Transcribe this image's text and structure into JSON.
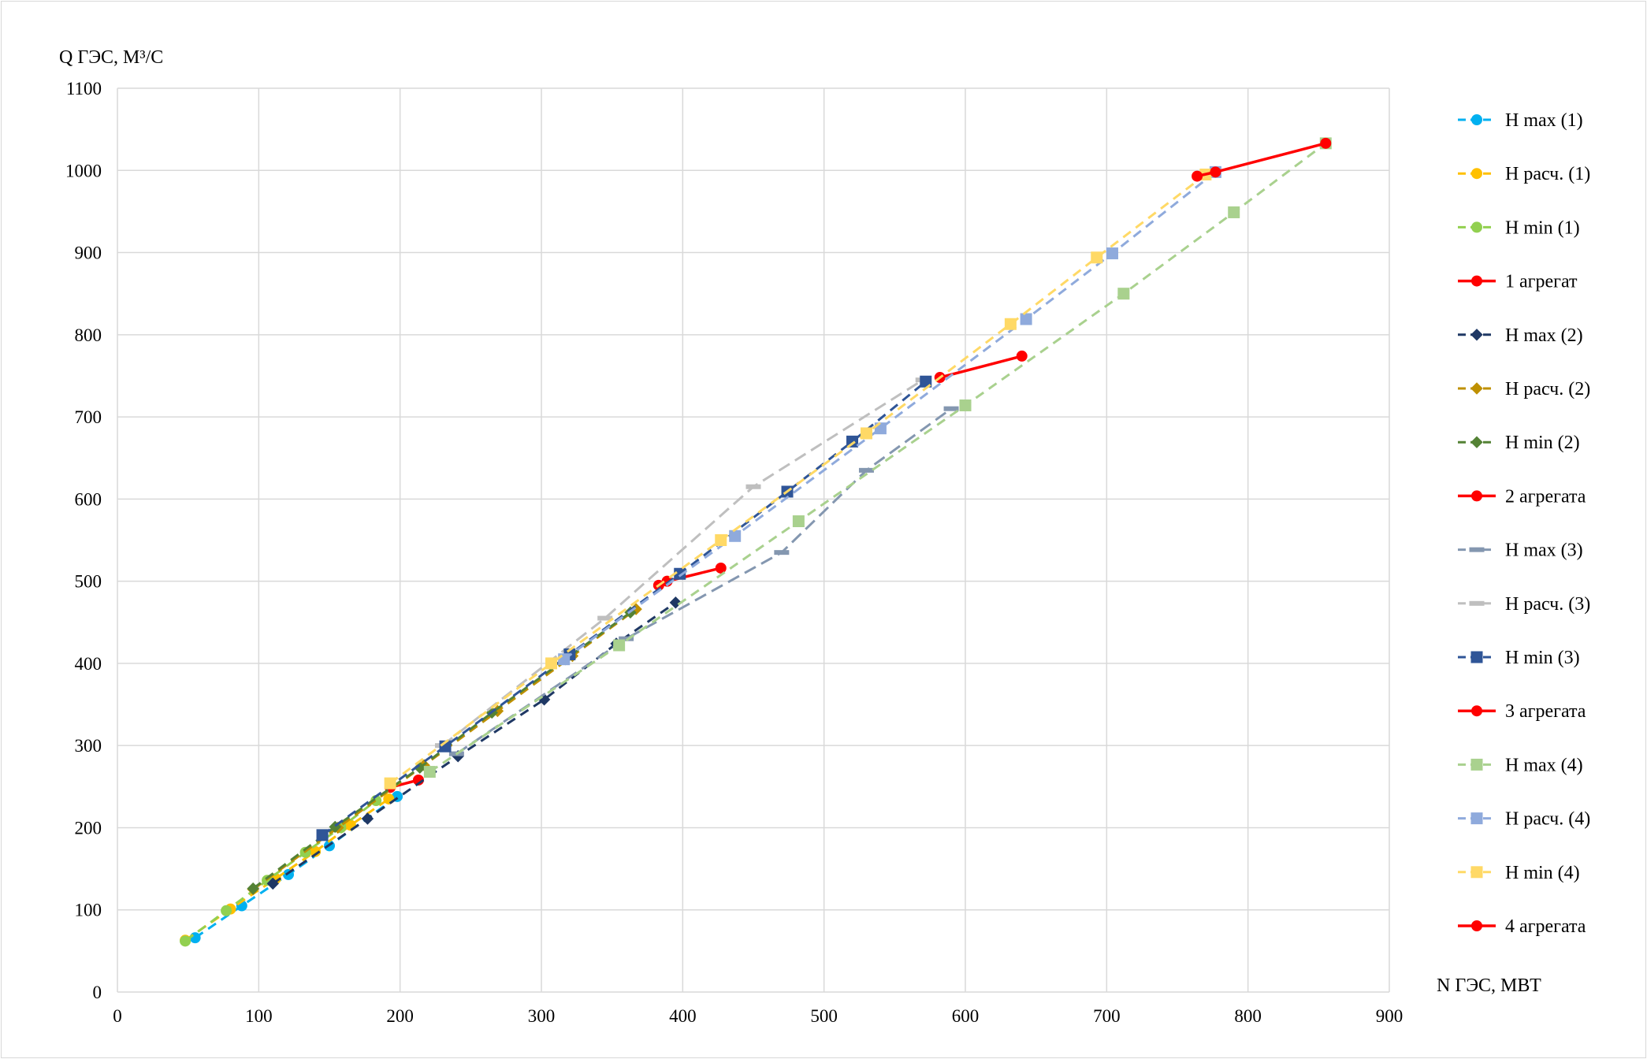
{
  "chart_data": {
    "type": "line",
    "xlabel": "N ГЭС, МВТ",
    "ylabel": "Q ГЭС, М³/С",
    "xlim": [
      0,
      900
    ],
    "ylim": [
      0,
      1100
    ],
    "x_ticks": [
      "0",
      "100",
      "200",
      "300",
      "400",
      "500",
      "600",
      "700",
      "800",
      "900"
    ],
    "y_ticks": [
      "0",
      "100",
      "200",
      "300",
      "400",
      "500",
      "600",
      "700",
      "800",
      "900",
      "1000",
      "1100"
    ],
    "grid": true,
    "legend_position": "right",
    "series": [
      {
        "name": "H max (1)",
        "color": "#00b0f0",
        "dash": "dash",
        "marker": "circle",
        "x": [
          55,
          88,
          121,
          150,
          198
        ],
        "y": [
          66,
          105,
          143,
          178,
          238
        ]
      },
      {
        "name": "H расч. (1)",
        "color": "#ffc000",
        "dash": "dash",
        "marker": "circle",
        "x": [
          48,
          80,
          112,
          140,
          165,
          192
        ],
        "y": [
          63,
          101,
          138,
          171,
          203,
          235
        ]
      },
      {
        "name": "H min (1)",
        "color": "#92d050",
        "dash": "dash",
        "marker": "circle",
        "x": [
          48,
          77,
          106,
          133,
          158,
          183
        ],
        "y": [
          62,
          99,
          136,
          170,
          200,
          233
        ]
      },
      {
        "name": "1 агрегат",
        "color": "#ff0000",
        "dash": "solid",
        "marker": "circle",
        "x": [
          193,
          213
        ],
        "y": [
          249,
          258
        ]
      },
      {
        "name": "H max (2)",
        "color": "#1f3864",
        "dash": "dash",
        "marker": "diamond",
        "x": [
          110,
          177,
          241,
          302,
          353,
          395
        ],
        "y": [
          132,
          211,
          287,
          356,
          424,
          474
        ]
      },
      {
        "name": "H расч. (2)",
        "color": "#bf9000",
        "dash": "dash",
        "marker": "diamond",
        "x": [
          96,
          156,
          217,
          269,
          322,
          367
        ],
        "y": [
          125,
          200,
          276,
          342,
          409,
          466
        ]
      },
      {
        "name": "H min (2)",
        "color": "#548235",
        "dash": "dash",
        "marker": "diamond",
        "x": [
          96,
          154,
          214,
          265,
          317,
          363
        ],
        "y": [
          126,
          201,
          273,
          340,
          405,
          462
        ]
      },
      {
        "name": "2 агрегата",
        "color": "#ff0000",
        "dash": "solid",
        "marker": "circle",
        "x": [
          383,
          389,
          427
        ],
        "y": [
          495,
          500,
          516
        ]
      },
      {
        "name": "H max (3)",
        "color": "#8497b0",
        "dash": "longdash",
        "marker": "dash",
        "x": [
          240,
          360,
          470,
          530,
          590
        ],
        "y": [
          290,
          430,
          535,
          635,
          710
        ]
      },
      {
        "name": "H расч. (3)",
        "color": "#bfbfbf",
        "dash": "longdash",
        "marker": "dash",
        "x": [
          230,
          345,
          450,
          570
        ],
        "y": [
          300,
          455,
          615,
          745
        ]
      },
      {
        "name": "H min (3)",
        "color": "#2f5597",
        "dash": "dash",
        "marker": "square",
        "x": [
          145,
          232,
          320,
          398,
          474,
          520,
          572
        ],
        "y": [
          191,
          299,
          411,
          509,
          609,
          670,
          743
        ]
      },
      {
        "name": "3 агрегата",
        "color": "#ff0000",
        "dash": "solid",
        "marker": "circle",
        "x": [
          582,
          640
        ],
        "y": [
          748,
          774
        ]
      },
      {
        "name": "H max (4)",
        "color": "#a9d18e",
        "dash": "dash",
        "marker": "square",
        "x": [
          221,
          355,
          482,
          600,
          712,
          790,
          855
        ],
        "y": [
          268,
          422,
          573,
          714,
          850,
          949,
          1033
        ]
      },
      {
        "name": "H расч. (4)",
        "color": "#8faadc",
        "dash": "dash",
        "marker": "square",
        "x": [
          316,
          437,
          540,
          643,
          704,
          777
        ],
        "y": [
          405,
          555,
          686,
          819,
          899,
          998
        ]
      },
      {
        "name": "H min (4)",
        "color": "#ffd966",
        "dash": "dash",
        "marker": "square",
        "x": [
          193,
          307,
          427,
          530,
          632,
          693,
          770
        ],
        "y": [
          254,
          400,
          550,
          680,
          813,
          894,
          995
        ]
      },
      {
        "name": "4 агрегата",
        "color": "#ff0000",
        "dash": "solid",
        "marker": "circle",
        "x": [
          764,
          777,
          855
        ],
        "y": [
          993,
          998,
          1033
        ]
      }
    ]
  }
}
